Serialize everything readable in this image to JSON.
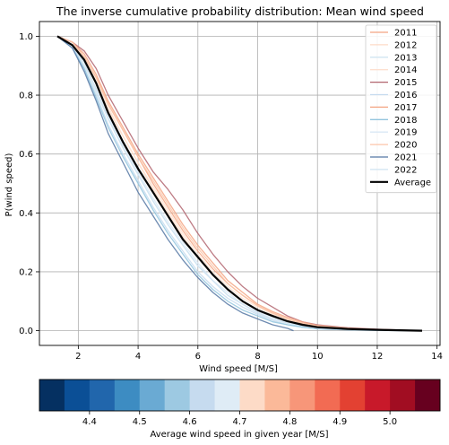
{
  "chart_data": [
    {
      "type": "line",
      "title": "The inverse cumulative probability distribution: Mean wind speed",
      "xlabel": "Wind speed [M/S]",
      "ylabel": "P(wind speed)",
      "xlim": [
        0.7,
        14.1
      ],
      "ylim": [
        -0.05,
        1.05
      ],
      "xticks": [
        2,
        4,
        6,
        8,
        10,
        12,
        14
      ],
      "yticks": [
        0.0,
        0.2,
        0.4,
        0.6,
        0.8,
        1.0
      ],
      "xtick_labels": [
        "2",
        "4",
        "6",
        "8",
        "10",
        "12",
        "14"
      ],
      "ytick_labels": [
        "0.0",
        "0.2",
        "0.4",
        "0.6",
        "0.8",
        "1.0"
      ],
      "grid": true,
      "legend_position": "top-right",
      "series": [
        {
          "name": "2011",
          "color": "#f4a582",
          "width": 1.3,
          "x": [
            1.3,
            1.8,
            2.2,
            2.6,
            3.0,
            3.5,
            4.0,
            4.5,
            5.0,
            5.5,
            6.0,
            6.5,
            7.0,
            7.5,
            8.0,
            8.5,
            9.0,
            9.5,
            10.0,
            11.0,
            12.0,
            13.5
          ],
          "y": [
            1.0,
            0.98,
            0.93,
            0.86,
            0.77,
            0.68,
            0.59,
            0.5,
            0.42,
            0.34,
            0.27,
            0.21,
            0.16,
            0.12,
            0.085,
            0.06,
            0.04,
            0.025,
            0.015,
            0.008,
            0.004,
            0.0
          ]
        },
        {
          "name": "2012",
          "color": "#fddbc7",
          "width": 1.3,
          "x": [
            1.3,
            1.8,
            2.2,
            2.6,
            3.0,
            3.5,
            4.0,
            4.5,
            5.0,
            5.5,
            6.0,
            6.5,
            7.0,
            7.5,
            8.0,
            8.5,
            9.0,
            9.5,
            10.0,
            11.0,
            12.0,
            13.5
          ],
          "y": [
            1.0,
            0.97,
            0.92,
            0.84,
            0.75,
            0.66,
            0.57,
            0.48,
            0.4,
            0.32,
            0.25,
            0.19,
            0.14,
            0.1,
            0.07,
            0.05,
            0.03,
            0.02,
            0.012,
            0.006,
            0.003,
            0.0
          ]
        },
        {
          "name": "2013",
          "color": "#d1e5f0",
          "width": 1.3,
          "x": [
            1.3,
            1.8,
            2.2,
            2.6,
            3.0,
            3.5,
            4.0,
            4.5,
            5.0,
            5.5,
            6.0,
            6.5,
            7.0,
            7.5,
            8.0,
            8.5,
            9.0,
            9.5,
            10.0,
            11.0,
            12.0,
            13.5
          ],
          "y": [
            1.0,
            0.97,
            0.9,
            0.81,
            0.72,
            0.62,
            0.53,
            0.44,
            0.36,
            0.29,
            0.22,
            0.17,
            0.12,
            0.09,
            0.06,
            0.04,
            0.025,
            0.015,
            0.008,
            0.004,
            0.002,
            0.0
          ]
        },
        {
          "name": "2014",
          "color": "#fde0d0",
          "width": 1.3,
          "x": [
            1.3,
            1.8,
            2.2,
            2.6,
            3.0,
            3.5,
            4.0,
            4.5,
            5.0,
            5.5,
            6.0,
            6.5,
            7.0,
            7.5,
            8.0,
            8.5,
            9.0,
            9.5,
            10.0,
            11.0,
            12.0,
            13.5
          ],
          "y": [
            1.0,
            0.98,
            0.92,
            0.85,
            0.76,
            0.66,
            0.57,
            0.49,
            0.41,
            0.33,
            0.26,
            0.2,
            0.15,
            0.11,
            0.08,
            0.055,
            0.035,
            0.022,
            0.013,
            0.006,
            0.003,
            0.0
          ]
        },
        {
          "name": "2015",
          "color": "#b2646e",
          "width": 1.3,
          "x": [
            1.3,
            1.8,
            2.2,
            2.6,
            3.0,
            3.5,
            4.0,
            4.5,
            5.0,
            5.5,
            6.0,
            6.5,
            7.0,
            7.5,
            8.0,
            8.5,
            9.0,
            9.5,
            10.0,
            11.0,
            12.0,
            13.5
          ],
          "y": [
            1.0,
            0.98,
            0.95,
            0.89,
            0.8,
            0.71,
            0.62,
            0.54,
            0.48,
            0.41,
            0.33,
            0.26,
            0.2,
            0.15,
            0.11,
            0.08,
            0.05,
            0.03,
            0.02,
            0.01,
            0.005,
            0.0
          ]
        },
        {
          "name": "2016",
          "color": "#c6dbef",
          "width": 1.3,
          "x": [
            1.3,
            1.8,
            2.2,
            2.6,
            3.0,
            3.5,
            4.0,
            4.5,
            5.0,
            5.5,
            6.0,
            6.5,
            7.0,
            7.5,
            8.0,
            8.5,
            9.0,
            9.5,
            10.0,
            11.0,
            12.0,
            13.5
          ],
          "y": [
            1.0,
            0.97,
            0.89,
            0.8,
            0.7,
            0.6,
            0.51,
            0.42,
            0.34,
            0.27,
            0.2,
            0.15,
            0.11,
            0.08,
            0.055,
            0.035,
            0.02,
            0.012,
            0.007,
            0.003,
            0.001,
            0.0
          ]
        },
        {
          "name": "2017",
          "color": "#f4a582",
          "width": 1.3,
          "x": [
            1.3,
            1.8,
            2.2,
            2.6,
            3.0,
            3.5,
            4.0,
            4.5,
            5.0,
            5.5,
            6.0,
            6.5,
            7.0,
            7.5,
            8.0,
            8.5,
            9.0,
            9.5,
            10.0,
            11.0,
            12.0,
            13.5
          ],
          "y": [
            1.0,
            0.98,
            0.94,
            0.87,
            0.78,
            0.69,
            0.6,
            0.52,
            0.44,
            0.36,
            0.29,
            0.23,
            0.17,
            0.13,
            0.09,
            0.065,
            0.045,
            0.03,
            0.018,
            0.009,
            0.004,
            0.0
          ]
        },
        {
          "name": "2018",
          "color": "#92c5de",
          "width": 1.3,
          "x": [
            1.3,
            1.8,
            2.2,
            2.6,
            3.0,
            3.5,
            4.0,
            4.5,
            5.0,
            5.5,
            6.0,
            6.5,
            7.0,
            7.5,
            8.0,
            8.5,
            9.0,
            9.5,
            10.0,
            11.0,
            12.0,
            13.5
          ],
          "y": [
            1.0,
            0.96,
            0.89,
            0.79,
            0.69,
            0.59,
            0.5,
            0.41,
            0.33,
            0.26,
            0.19,
            0.14,
            0.1,
            0.07,
            0.05,
            0.03,
            0.02,
            0.012,
            0.006,
            0.003,
            0.001,
            0.0
          ]
        },
        {
          "name": "2019",
          "color": "#d9e8f5",
          "width": 1.3,
          "x": [
            1.3,
            1.8,
            2.2,
            2.6,
            3.0,
            3.5,
            4.0,
            4.5,
            5.0,
            5.5,
            6.0,
            6.5,
            7.0,
            7.5,
            8.0,
            8.5,
            9.0,
            9.5,
            10.0,
            11.0,
            12.0,
            13.5
          ],
          "y": [
            1.0,
            0.97,
            0.91,
            0.82,
            0.73,
            0.63,
            0.54,
            0.45,
            0.37,
            0.3,
            0.23,
            0.17,
            0.13,
            0.09,
            0.065,
            0.045,
            0.03,
            0.018,
            0.01,
            0.005,
            0.002,
            0.0
          ]
        },
        {
          "name": "2020",
          "color": "#fcc5a8",
          "width": 1.3,
          "x": [
            1.3,
            1.8,
            2.2,
            2.6,
            3.0,
            3.5,
            4.0,
            4.5,
            5.0,
            5.5,
            6.0,
            6.5,
            7.0,
            7.5,
            8.0,
            8.5,
            9.0,
            9.5,
            10.0,
            11.0,
            12.0,
            13.5
          ],
          "y": [
            1.0,
            0.98,
            0.93,
            0.86,
            0.77,
            0.68,
            0.59,
            0.51,
            0.43,
            0.35,
            0.28,
            0.22,
            0.16,
            0.12,
            0.085,
            0.06,
            0.04,
            0.026,
            0.016,
            0.008,
            0.004,
            0.0
          ]
        },
        {
          "name": "2021",
          "color": "#5577a3",
          "width": 1.3,
          "x": [
            1.3,
            1.8,
            2.2,
            2.6,
            3.0,
            3.5,
            4.0,
            4.5,
            5.0,
            5.5,
            6.0,
            6.5,
            7.0,
            7.5,
            8.0,
            8.5,
            9.0,
            9.2
          ],
          "y": [
            1.0,
            0.96,
            0.88,
            0.78,
            0.67,
            0.57,
            0.47,
            0.39,
            0.31,
            0.24,
            0.18,
            0.13,
            0.09,
            0.06,
            0.04,
            0.02,
            0.008,
            0.0
          ]
        },
        {
          "name": "2022",
          "color": "#cfe3f2",
          "width": 1.3,
          "x": [
            1.3,
            1.8,
            2.2,
            2.6,
            3.0,
            3.5,
            4.0,
            4.5,
            5.0,
            5.5,
            6.0,
            6.5,
            7.0,
            7.5,
            8.0,
            8.5,
            9.0,
            9.5,
            10.0,
            11.0,
            12.0,
            13.5
          ],
          "y": [
            1.0,
            0.97,
            0.91,
            0.82,
            0.72,
            0.62,
            0.53,
            0.44,
            0.36,
            0.29,
            0.22,
            0.17,
            0.12,
            0.09,
            0.06,
            0.04,
            0.026,
            0.016,
            0.009,
            0.004,
            0.002,
            0.0
          ]
        },
        {
          "name": "Average",
          "color": "#000000",
          "width": 2.2,
          "x": [
            1.3,
            1.8,
            2.2,
            2.6,
            3.0,
            3.5,
            4.0,
            4.5,
            5.0,
            5.5,
            6.0,
            6.5,
            7.0,
            7.5,
            8.0,
            8.5,
            9.0,
            9.5,
            10.0,
            11.0,
            12.0,
            13.5
          ],
          "y": [
            1.0,
            0.97,
            0.92,
            0.84,
            0.74,
            0.64,
            0.55,
            0.47,
            0.39,
            0.31,
            0.25,
            0.19,
            0.14,
            0.1,
            0.07,
            0.05,
            0.032,
            0.02,
            0.012,
            0.006,
            0.003,
            0.0
          ]
        }
      ]
    },
    {
      "type": "heatmap",
      "xlabel": "Average wind speed in given year [M/S]",
      "range": [
        4.3,
        5.1
      ],
      "ticks": [
        4.4,
        4.5,
        4.6,
        4.7,
        4.8,
        4.9,
        5.0
      ],
      "tick_labels": [
        "4.4",
        "4.5",
        "4.6",
        "4.7",
        "4.8",
        "4.9",
        "5.0"
      ],
      "colors": [
        "#053061",
        "#0b4f96",
        "#2166ac",
        "#3d8cc2",
        "#6aaad3",
        "#9dc9e2",
        "#c6dbef",
        "#dfecf6",
        "#fddbc7",
        "#fbb999",
        "#f79679",
        "#f26b53",
        "#e34132",
        "#c8192a",
        "#a10d22",
        "#67001f"
      ]
    }
  ]
}
